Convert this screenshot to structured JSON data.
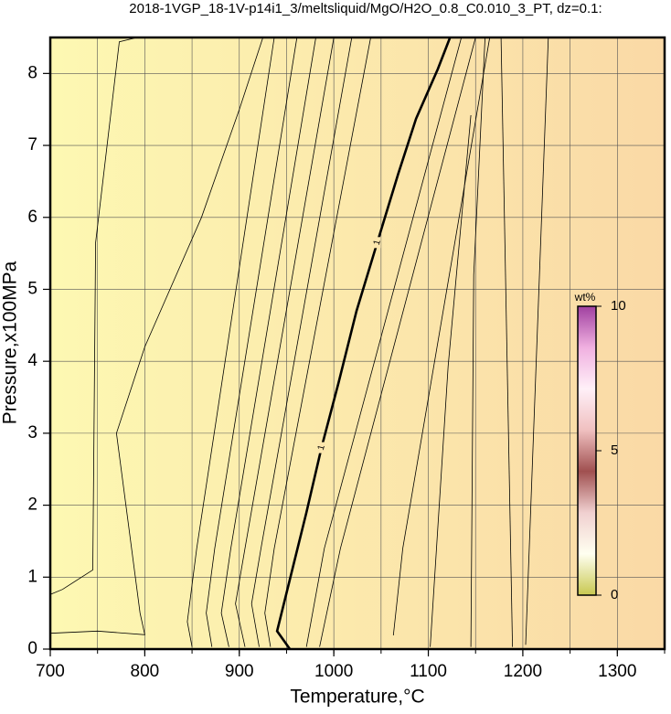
{
  "chart_data": {
    "type": "contour",
    "title": "2018-1VGP_18-1V-p14i1_3/meltsliquid/MgO/H2O_0.8_C0.010_3_PT, dz=0.1:",
    "x_label": "Temperature,°C",
    "y_label": "Pressure,x100MPa",
    "xlim": [
      700,
      1350
    ],
    "ylim": [
      0,
      8.5
    ],
    "xticks": [
      700,
      800,
      900,
      1000,
      1100,
      1200,
      1300
    ],
    "yticks": [
      0,
      1,
      2,
      3,
      4,
      5,
      6,
      7,
      8
    ],
    "xgrid": [
      700,
      750,
      800,
      850,
      900,
      950,
      1000,
      1050,
      1100,
      1150,
      1200,
      1250,
      1300,
      1350
    ],
    "grid": true,
    "background": [
      "#fdf8b2",
      "#fad9a6"
    ],
    "line_color": "#000000",
    "series": [
      {
        "x": [
          700,
          713,
          745,
          748,
          773,
          792
        ],
        "y": [
          0.76,
          0.83,
          1.1,
          5.65,
          8.44,
          8.5
        ]
      },
      {
        "x": [
          700,
          750,
          800,
          795,
          770,
          800,
          860,
          900,
          925
        ],
        "y": [
          0.22,
          0.25,
          0.2,
          0.5,
          3,
          4.2,
          6,
          7.5,
          8.5
        ]
      },
      {
        "x": [
          850,
          845,
          855,
          937
        ],
        "y": [
          0.03,
          0.38,
          1.4,
          8.5
        ]
      },
      {
        "x": [
          871,
          865,
          874,
          961
        ],
        "y": [
          0.03,
          0.5,
          1.4,
          8.5
        ]
      },
      {
        "x": [
          889,
          881,
          891,
          981
        ],
        "y": [
          0.03,
          0.5,
          1.4,
          8.5
        ]
      },
      {
        "x": [
          906,
          896,
          906,
          1000
        ],
        "y": [
          0.03,
          0.63,
          1.4,
          8.5
        ]
      },
      {
        "x": [
          921,
          913,
          923,
          1019
        ],
        "y": [
          0.03,
          0.63,
          1.4,
          8.5
        ]
      },
      {
        "x": [
          933,
          927,
          937,
          1039
        ],
        "y": [
          0.03,
          0.5,
          1.4,
          8.5
        ]
      },
      {
        "x": [
          953.5,
          940,
          954.5,
          971,
          987,
          1005,
          1024,
          1046,
          1068,
          1087,
          1110,
          1123
        ],
        "y": [
          0,
          0.25,
          1.02,
          1.9,
          2.8,
          3.7,
          4.7,
          5.65,
          6.6,
          7.37,
          8.06,
          8.5
        ],
        "level": 1,
        "bold": true
      },
      {
        "x": [
          971,
          990,
          1135
        ],
        "y": [
          0.03,
          1.4,
          8.5
        ]
      },
      {
        "x": [
          985,
          1007,
          1150
        ],
        "y": [
          0.03,
          1.4,
          8.5
        ]
      },
      {
        "x": [
          1063,
          1073,
          1165
        ],
        "y": [
          0.19,
          1.4,
          8.5
        ]
      },
      {
        "x": [
          1102,
          1121,
          1145
        ],
        "y": [
          0.03,
          3.93,
          7.42
        ]
      },
      {
        "x": [
          1145,
          1148,
          1160
        ],
        "y": [
          0.03,
          5.2,
          8.5
        ]
      },
      {
        "x": [
          1189,
          1177
        ],
        "y": [
          0.03,
          8.5
        ]
      },
      {
        "x": [
          1203,
          1227
        ],
        "y": [
          0.06,
          8.5
        ]
      }
    ],
    "colorbar": {
      "label": "wt%",
      "lim": [
        0,
        10
      ],
      "ticks": [
        0,
        5,
        10
      ],
      "colors": [
        "#c8c850",
        "#fffff0",
        "#f0d0d0",
        "#a05050",
        "#f0c0c0",
        "#fff0f8",
        "#f0b0e0",
        "#a040a0"
      ]
    }
  }
}
